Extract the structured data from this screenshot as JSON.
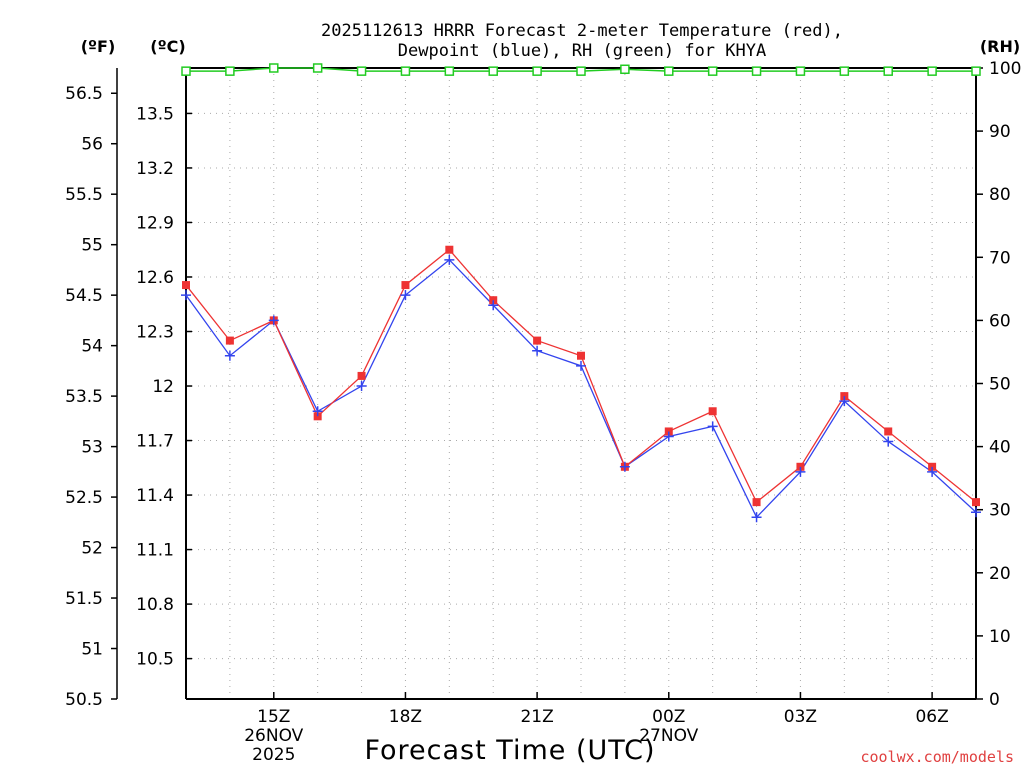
{
  "chart_data": {
    "type": "line",
    "title_line1": "2025112613 HRRR Forecast 2-meter Temperature (red),",
    "title_line2": "Dewpoint (blue), RH (green) for KHYA",
    "xlabel": "Forecast Time (UTC)",
    "unit_labels": {
      "f": "(ºF)",
      "c": "(ºC)",
      "rh": "(RH)"
    },
    "watermark": "coolwx.com/models",
    "hours": [
      13,
      14,
      15,
      16,
      17,
      18,
      19,
      20,
      21,
      22,
      23,
      24,
      25,
      26,
      27,
      28,
      29,
      30,
      31
    ],
    "x_range": [
      13,
      31
    ],
    "x_ticks": [
      {
        "hour": 15,
        "label": "15Z",
        "sub1": "26NOV",
        "sub2": "2025"
      },
      {
        "hour": 18,
        "label": "18Z",
        "sub1": "",
        "sub2": ""
      },
      {
        "hour": 21,
        "label": "21Z",
        "sub1": "",
        "sub2": ""
      },
      {
        "hour": 24,
        "label": "00Z",
        "sub1": "27NOV",
        "sub2": ""
      },
      {
        "hour": 27,
        "label": "03Z",
        "sub1": "",
        "sub2": ""
      },
      {
        "hour": 30,
        "label": "06Z",
        "sub1": "",
        "sub2": ""
      }
    ],
    "f_range": [
      50.5,
      56.75
    ],
    "f_ticks": [
      "50.5",
      "51",
      "51.5",
      "52",
      "52.5",
      "53",
      "53.5",
      "54",
      "54.5",
      "55",
      "55.5",
      "56",
      "56.5"
    ],
    "c_ticks": [
      "10.5",
      "10.8",
      "11.1",
      "11.4",
      "11.7",
      "12",
      "12.3",
      "12.6",
      "12.9",
      "13.2",
      "13.5"
    ],
    "rh_range": [
      0,
      100
    ],
    "rh_ticks": [
      "0",
      "10",
      "20",
      "30",
      "40",
      "50",
      "60",
      "70",
      "80",
      "90",
      "100"
    ],
    "series": [
      {
        "name": "Temperature",
        "unit": "F",
        "color": "#ee3333",
        "values": [
          54.6,
          54.05,
          54.25,
          53.3,
          53.7,
          54.6,
          54.95,
          54.45,
          54.05,
          53.9,
          52.8,
          53.15,
          53.35,
          52.45,
          52.8,
          53.5,
          53.15,
          52.8,
          52.45
        ]
      },
      {
        "name": "Dewpoint",
        "unit": "F",
        "color": "#3344ee",
        "values": [
          54.5,
          53.9,
          54.25,
          53.35,
          53.6,
          54.5,
          54.85,
          54.4,
          53.95,
          53.8,
          52.8,
          53.1,
          53.2,
          52.3,
          52.75,
          53.45,
          53.05,
          52.75,
          52.35
        ]
      },
      {
        "name": "RH",
        "unit": "%",
        "color": "#22cc22",
        "values": [
          99.5,
          99.5,
          100,
          100,
          99.5,
          99.5,
          99.5,
          99.5,
          99.5,
          99.5,
          99.8,
          99.5,
          99.5,
          99.5,
          99.5,
          99.5,
          99.5,
          99.5,
          99.5
        ]
      }
    ]
  }
}
